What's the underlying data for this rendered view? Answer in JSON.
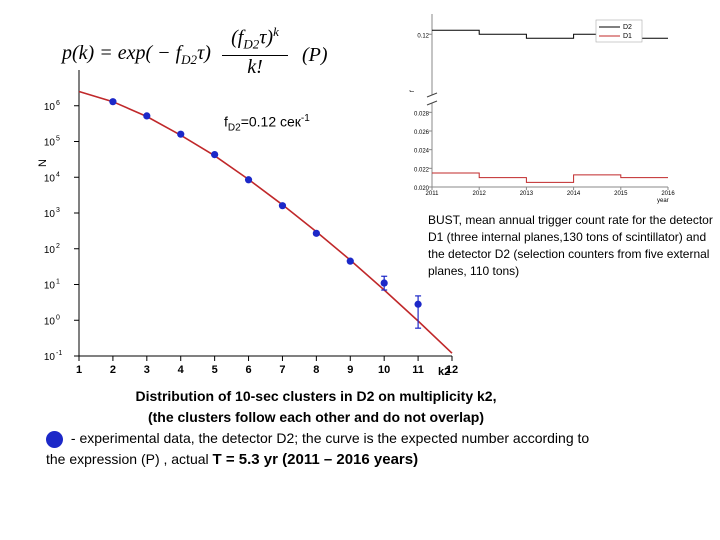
{
  "formula": {
    "lhs": "p(k) = exp( − f",
    "lhs_sub": "D2",
    "lhs_tau": "τ)",
    "num": "(f",
    "num_sub": "D2",
    "num_tail": "τ)",
    "num_exp": "k",
    "den": "k!",
    "label": "(P)"
  },
  "rate_label": {
    "text": "f",
    "sub": "D2",
    "value": "=0.12 сек",
    "sup": "-1"
  },
  "inset_caption": "BUST, mean  annual trigger  count rate for the detector D1 (three internal planes,130 tons of scintillator) and the detector D2 (selection counters from five external planes, 110  tons)",
  "caption": {
    "title_line1": "Distribution of 10-sec clusters in D2 on multiplicity k2,",
    "title_line2": "(the clusters follow each other and do not overlap)",
    "legend_text": " - experimental data, the detector D2; the curve is the expected number according to the expression (P) , actual  ",
    "tau_text": "T = 5.3 yr (2011 – 2016 years)"
  },
  "colors": {
    "points": "#1c28c8",
    "curve": "#c0282a",
    "d2": "#000000",
    "d1": "#c0282a"
  },
  "chart_data": [
    {
      "type": "scatter",
      "xlabel": "k2",
      "ylabel": "N",
      "xlim": [
        1,
        12
      ],
      "ylim": [
        0.1,
        10000000
      ],
      "yscale": "log",
      "xticks": [
        "1",
        "2",
        "3",
        "4",
        "5",
        "6",
        "7",
        "8",
        "9",
        "10",
        "11",
        "12"
      ],
      "yticks": [
        "10^-1",
        "10^0",
        "10^1",
        "10^2",
        "10^3",
        "10^4",
        "10^5",
        "10^6"
      ],
      "points": [
        {
          "x": 2,
          "y": 1300000
        },
        {
          "x": 3,
          "y": 520000
        },
        {
          "x": 4,
          "y": 160000
        },
        {
          "x": 5,
          "y": 43000
        },
        {
          "x": 6,
          "y": 8500
        },
        {
          "x": 7,
          "y": 1600
        },
        {
          "x": 8,
          "y": 270
        },
        {
          "x": 9,
          "y": 45
        },
        {
          "x": 10,
          "y": 11
        },
        {
          "x": 11,
          "y": 2.8
        }
      ],
      "error_bars": [
        {
          "x": 10,
          "low": 7,
          "high": 17
        },
        {
          "x": 11,
          "low": 0.6,
          "high": 4.8
        }
      ],
      "curve": [
        {
          "x": 1,
          "y": 2500000
        },
        {
          "x": 2,
          "y": 1300000
        },
        {
          "x": 3,
          "y": 500000
        },
        {
          "x": 4,
          "y": 150000
        },
        {
          "x": 5,
          "y": 40000
        },
        {
          "x": 6,
          "y": 8700
        },
        {
          "x": 7,
          "y": 1700
        },
        {
          "x": 8,
          "y": 300
        },
        {
          "x": 9,
          "y": 48
        },
        {
          "x": 10,
          "y": 7
        },
        {
          "x": 11,
          "y": 0.95
        },
        {
          "x": 12,
          "y": 0.12
        }
      ]
    },
    {
      "type": "line",
      "xlabel": "year",
      "ylabel": "f",
      "x": [
        "2011",
        "2012",
        "2013",
        "2014",
        "2015",
        "2016"
      ],
      "series": [
        {
          "name": "D2",
          "values": [
            0.121,
            0.12,
            0.119,
            0.12,
            0.119,
            0.119
          ]
        },
        {
          "name": "D1",
          "values": [
            0.0215,
            0.021,
            0.0205,
            0.0213,
            0.021,
            0.021
          ]
        }
      ],
      "yticks_upper": [
        "0.12"
      ],
      "yticks_lower": [
        "0.020",
        "0.022",
        "0.024",
        "0.026",
        "0.028"
      ],
      "legend": "top-right"
    }
  ]
}
